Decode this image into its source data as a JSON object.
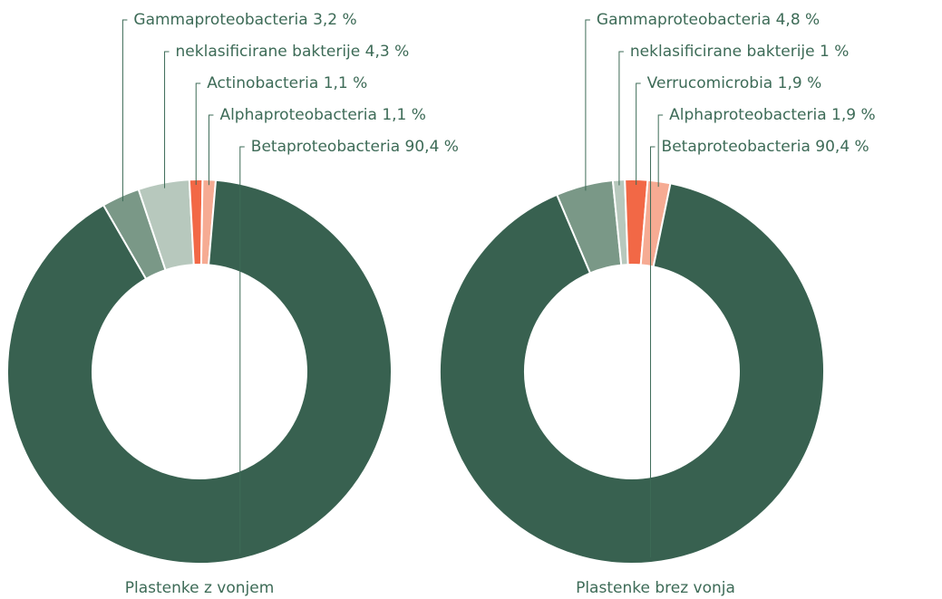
{
  "chart_data": [
    {
      "type": "pie",
      "title": "Plastenke z vonjem",
      "categories": [
        "Gammaproteobacteria",
        "neklasificirane bakterije",
        "Actinobacteria",
        "Alphaproteobacteria",
        "Betaproteobacteria"
      ],
      "values": [
        3.2,
        4.3,
        1.1,
        1.1,
        90.4
      ],
      "value_labels": [
        "3,2 %",
        "4,3 %",
        "1,1 %",
        "1,1 %",
        "90,4 %"
      ],
      "colors": [
        "#7a9887",
        "#b7c8bd",
        "#f26846",
        "#f6ab93",
        "#386150"
      ]
    },
    {
      "type": "pie",
      "title": "Plastenke brez vonja",
      "categories": [
        "Gammaproteobacteria",
        "neklasificirane bakterije",
        "Verrucomicrobia",
        "Alphaproteobacteria",
        "Betaproteobacteria"
      ],
      "values": [
        4.8,
        1,
        1.9,
        1.9,
        90.4
      ],
      "value_labels": [
        "4,8 %",
        "1 %",
        "1,9 %",
        "1,9 %",
        "90,4 %"
      ],
      "colors": [
        "#7a9887",
        "#b7c8bd",
        "#f26846",
        "#f6ab93",
        "#386150"
      ]
    }
  ]
}
